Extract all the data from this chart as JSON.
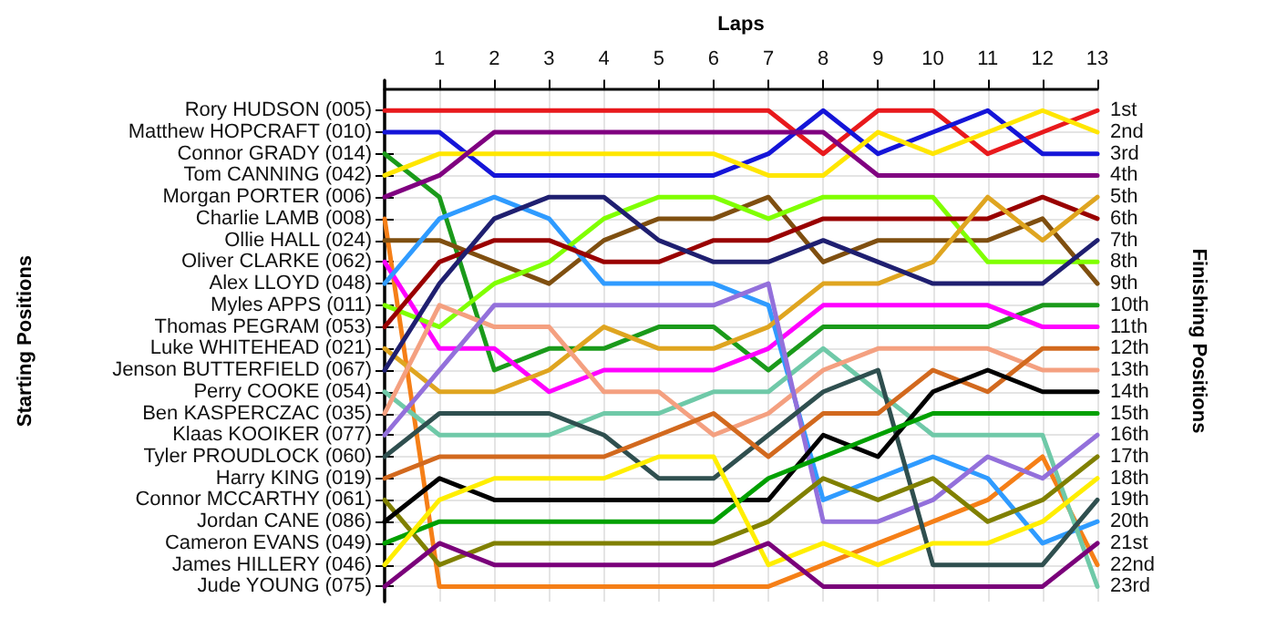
{
  "chart_data": {
    "type": "line",
    "xlabel": "Laps",
    "annotations": [
      "Starting Positions"
    ],
    "y2label": "Finishing Positions",
    "x": [
      0,
      1,
      2,
      3,
      4,
      5,
      6,
      7,
      8,
      9,
      10,
      11,
      12,
      13
    ],
    "xlim": [
      0,
      13
    ],
    "xticks": [
      1,
      2,
      3,
      4,
      5,
      6,
      7,
      8,
      9,
      10,
      11,
      12,
      13
    ],
    "y_categories": [
      "Rory HUDSON (005)",
      "Matthew HOPCRAFT (010)",
      "Connor GRADY (014)",
      "Tom CANNING (042)",
      "Morgan PORTER (006)",
      "Charlie LAMB (008)",
      "Ollie HALL (024)",
      "Oliver CLARKE (062)",
      "Alex LLOYD (048)",
      "Myles APPS (011)",
      "Thomas PEGRAM (053)",
      "Luke WHITEHEAD (021)",
      "Jenson BUTTERFIELD (067)",
      "Perry COOKE (054)",
      "Ben KASPERCZAC (035)",
      "Klaas KOOIKER (077)",
      "Tyler PROUDLOCK (060)",
      "Harry KING (019)",
      "Connor MCCARTHY (061)",
      "Jordan CANE (086)",
      "Cameron EVANS (049)",
      "James HILLERY (046)",
      "Jude YOUNG (075)"
    ],
    "y2lim": [
      23.7,
      -0.4
    ],
    "y2ticks": [
      {
        "value": 1,
        "label": "1st"
      },
      {
        "value": 2,
        "label": "2nd"
      },
      {
        "value": 3,
        "label": "3rd"
      },
      {
        "value": 4,
        "label": "4th"
      },
      {
        "value": 5,
        "label": "5th"
      },
      {
        "value": 6,
        "label": "6th"
      },
      {
        "value": 7,
        "label": "7th"
      },
      {
        "value": 8,
        "label": "8th"
      },
      {
        "value": 9,
        "label": "9th"
      },
      {
        "value": 10,
        "label": "10th"
      },
      {
        "value": 11,
        "label": "11th"
      },
      {
        "value": 12,
        "label": "12th"
      },
      {
        "value": 13,
        "label": "13th"
      },
      {
        "value": 14,
        "label": "14th"
      },
      {
        "value": 15,
        "label": "15th"
      },
      {
        "value": 16,
        "label": "16th"
      },
      {
        "value": 17,
        "label": "17th"
      },
      {
        "value": 18,
        "label": "18th"
      },
      {
        "value": 19,
        "label": "19th"
      },
      {
        "value": 20,
        "label": "20th"
      },
      {
        "value": 21,
        "label": "21st"
      },
      {
        "value": 22,
        "label": "22nd"
      },
      {
        "value": 23,
        "label": "23rd"
      }
    ],
    "grid": true,
    "marker": "none",
    "series": [
      {
        "axis": "y2",
        "color": "#e8191c",
        "values": [
          1,
          1,
          1,
          1,
          1,
          1,
          1,
          1,
          3,
          1,
          1,
          3,
          2,
          1
        ]
      },
      {
        "axis": "y2",
        "color": "#1515d8",
        "values": [
          2,
          2,
          4,
          4,
          4,
          4,
          4,
          3,
          1,
          3,
          2,
          1,
          3,
          3
        ]
      },
      {
        "axis": "y2",
        "color": "#1a9a1a",
        "values": [
          3,
          5,
          13,
          12,
          12,
          11,
          11,
          13,
          11,
          11,
          11,
          11,
          10,
          10
        ]
      },
      {
        "axis": "y2",
        "color": "#ffe600",
        "values": [
          4,
          3,
          3,
          3,
          3,
          3,
          3,
          4,
          4,
          2,
          3,
          2,
          1,
          2
        ]
      },
      {
        "axis": "y2",
        "color": "#800080",
        "values": [
          5,
          4,
          2,
          2,
          2,
          2,
          2,
          2,
          2,
          4,
          4,
          4,
          4,
          4
        ]
      },
      {
        "axis": "y2",
        "color": "#f57f17",
        "values": [
          6,
          23,
          23,
          23,
          23,
          23,
          23,
          23,
          22,
          21,
          20,
          19,
          17,
          22
        ]
      },
      {
        "axis": "y2",
        "color": "#7f4f10",
        "values": [
          7,
          7,
          8,
          9,
          7,
          6,
          6,
          5,
          8,
          7,
          7,
          7,
          6,
          9
        ]
      },
      {
        "axis": "y2",
        "color": "#ff00ff",
        "values": [
          8,
          12,
          12,
          14,
          13,
          13,
          13,
          12,
          10,
          10,
          10,
          10,
          11,
          11
        ]
      },
      {
        "axis": "y2",
        "color": "#2f9bff",
        "values": [
          9,
          6,
          5,
          6,
          9,
          9,
          9,
          10,
          19,
          18,
          17,
          18,
          21,
          20
        ]
      },
      {
        "axis": "y2",
        "color": "#80ff00",
        "values": [
          10,
          11,
          9,
          8,
          6,
          5,
          5,
          6,
          5,
          5,
          5,
          8,
          8,
          8
        ]
      },
      {
        "axis": "y2",
        "color": "#990000",
        "values": [
          11,
          8,
          7,
          7,
          8,
          8,
          7,
          7,
          6,
          6,
          6,
          6,
          5,
          6
        ]
      },
      {
        "axis": "y2",
        "color": "#dfa520",
        "values": [
          12,
          14,
          14,
          13,
          11,
          12,
          12,
          11,
          9,
          9,
          8,
          5,
          7,
          5
        ]
      },
      {
        "axis": "y2",
        "color": "#1f1f70",
        "values": [
          13,
          9,
          6,
          5,
          5,
          7,
          8,
          8,
          7,
          8,
          9,
          9,
          9,
          7
        ]
      },
      {
        "axis": "y2",
        "color": "#6fc9a8",
        "values": [
          14,
          16,
          16,
          16,
          15,
          15,
          14,
          14,
          12,
          14,
          16,
          16,
          16,
          23
        ]
      },
      {
        "axis": "y2",
        "color": "#f4a080",
        "values": [
          15,
          10,
          11,
          11,
          14,
          14,
          16,
          15,
          13,
          12,
          12,
          12,
          13,
          13
        ]
      },
      {
        "axis": "y2",
        "color": "#9370db",
        "values": [
          16,
          13,
          10,
          10,
          10,
          10,
          10,
          9,
          20,
          20,
          19,
          17,
          18,
          16
        ]
      },
      {
        "axis": "y2",
        "color": "#2f4f4f",
        "values": [
          17,
          15,
          15,
          15,
          16,
          18,
          18,
          16,
          14,
          13,
          22,
          22,
          22,
          19
        ]
      },
      {
        "axis": "y2",
        "color": "#d2691e",
        "values": [
          18,
          17,
          17,
          17,
          17,
          16,
          15,
          17,
          15,
          15,
          13,
          14,
          12,
          12
        ]
      },
      {
        "axis": "y2",
        "color": "#808000",
        "values": [
          19,
          22,
          21,
          21,
          21,
          21,
          21,
          20,
          18,
          19,
          18,
          20,
          19,
          17
        ]
      },
      {
        "axis": "y2",
        "color": "#000000",
        "values": [
          20,
          18,
          19,
          19,
          19,
          19,
          19,
          19,
          16,
          17,
          14,
          13,
          14,
          14
        ]
      },
      {
        "axis": "y2",
        "color": "#00a000",
        "values": [
          21,
          20,
          20,
          20,
          20,
          20,
          20,
          18,
          17,
          16,
          15,
          15,
          15,
          15
        ]
      },
      {
        "axis": "y2",
        "color": "#ffee00",
        "values": [
          22,
          19,
          18,
          18,
          18,
          17,
          17,
          22,
          21,
          22,
          21,
          21,
          20,
          18
        ]
      },
      {
        "axis": "y2",
        "color": "#7a007a",
        "values": [
          23,
          21,
          22,
          22,
          22,
          22,
          22,
          21,
          23,
          23,
          23,
          23,
          23,
          21
        ]
      }
    ]
  }
}
